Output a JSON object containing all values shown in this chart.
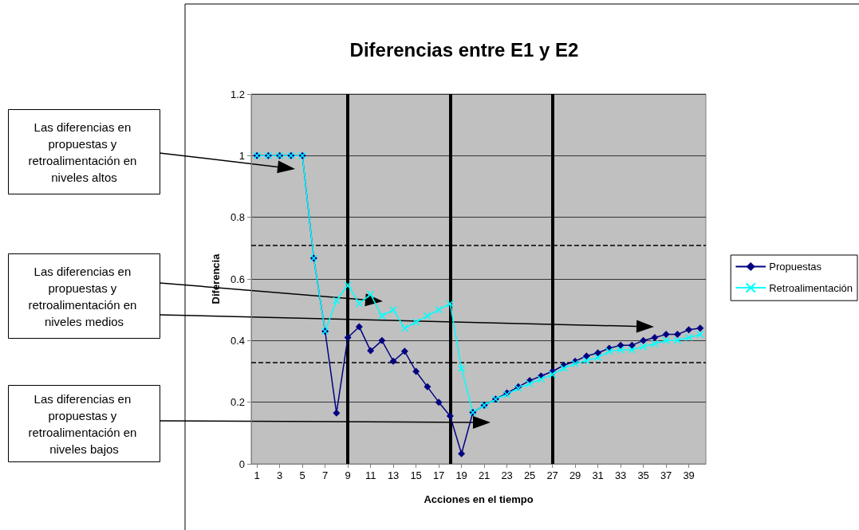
{
  "chart_data": {
    "type": "line",
    "title": "Diferencias entre E1 y E2",
    "xlabel": "Acciones en el tiempo",
    "ylabel": "Diferencia",
    "x": [
      1,
      2,
      3,
      4,
      5,
      6,
      7,
      8,
      9,
      10,
      11,
      12,
      13,
      14,
      15,
      16,
      17,
      18,
      19,
      20,
      21,
      22,
      23,
      24,
      25,
      26,
      27,
      28,
      29,
      30,
      31,
      32,
      33,
      34,
      35,
      36,
      37,
      38,
      39,
      40
    ],
    "xlim": [
      0.5,
      40.5
    ],
    "xticks": [
      1,
      3,
      5,
      7,
      9,
      11,
      13,
      15,
      17,
      19,
      21,
      23,
      25,
      27,
      29,
      31,
      33,
      35,
      37,
      39
    ],
    "ylim": [
      0,
      1.2
    ],
    "yticks": [
      0,
      0.2,
      0.4,
      0.6,
      0.8,
      1,
      1.2
    ],
    "series": [
      {
        "name": "Propuestas",
        "color": "#000080",
        "marker": "diamond",
        "values": [
          1,
          1,
          1,
          1,
          1,
          0.667,
          0.43,
          0.165,
          0.41,
          0.445,
          0.367,
          0.4,
          0.333,
          0.365,
          0.3,
          0.25,
          0.2,
          0.155,
          0.033,
          0.167,
          0.19,
          0.21,
          0.23,
          0.25,
          0.27,
          0.285,
          0.3,
          0.32,
          0.333,
          0.35,
          0.36,
          0.375,
          0.385,
          0.385,
          0.4,
          0.41,
          0.42,
          0.42,
          0.435,
          0.44
        ]
      },
      {
        "name": "Retroalimentación",
        "color": "#00ffff",
        "marker": "cross",
        "values": [
          1,
          1,
          1,
          1,
          1,
          0.667,
          0.43,
          0.53,
          0.58,
          0.52,
          0.55,
          0.48,
          0.5,
          0.44,
          0.46,
          0.48,
          0.5,
          0.52,
          0.31,
          0.167,
          0.19,
          0.21,
          0.225,
          0.245,
          0.26,
          0.275,
          0.29,
          0.31,
          0.325,
          0.335,
          0.345,
          0.365,
          0.37,
          0.37,
          0.38,
          0.39,
          0.4,
          0.4,
          0.41,
          0.42
        ]
      }
    ],
    "ref_lines": [
      {
        "axis": "x",
        "value": 9,
        "color": "#000000",
        "line_style": "solid"
      },
      {
        "axis": "x",
        "value": 18,
        "color": "#000000",
        "line_style": "solid"
      },
      {
        "axis": "x",
        "value": 27,
        "color": "#000000",
        "line_style": "solid"
      },
      {
        "axis": "y",
        "value": 0.71,
        "color": "#000000",
        "line_style": "dashed"
      },
      {
        "axis": "y",
        "value": 0.33,
        "color": "#000000",
        "line_style": "dashed"
      }
    ],
    "annotations": [
      "Las diferencias en propuestas y retroalimentación en niveles altos",
      "Las diferencias en propuestas y retroalimentación en niveles medios",
      "Las diferencias en propuestas y retroalimentación en niveles bajos"
    ],
    "grid": "y",
    "legend": "right",
    "line_style": "solid"
  }
}
